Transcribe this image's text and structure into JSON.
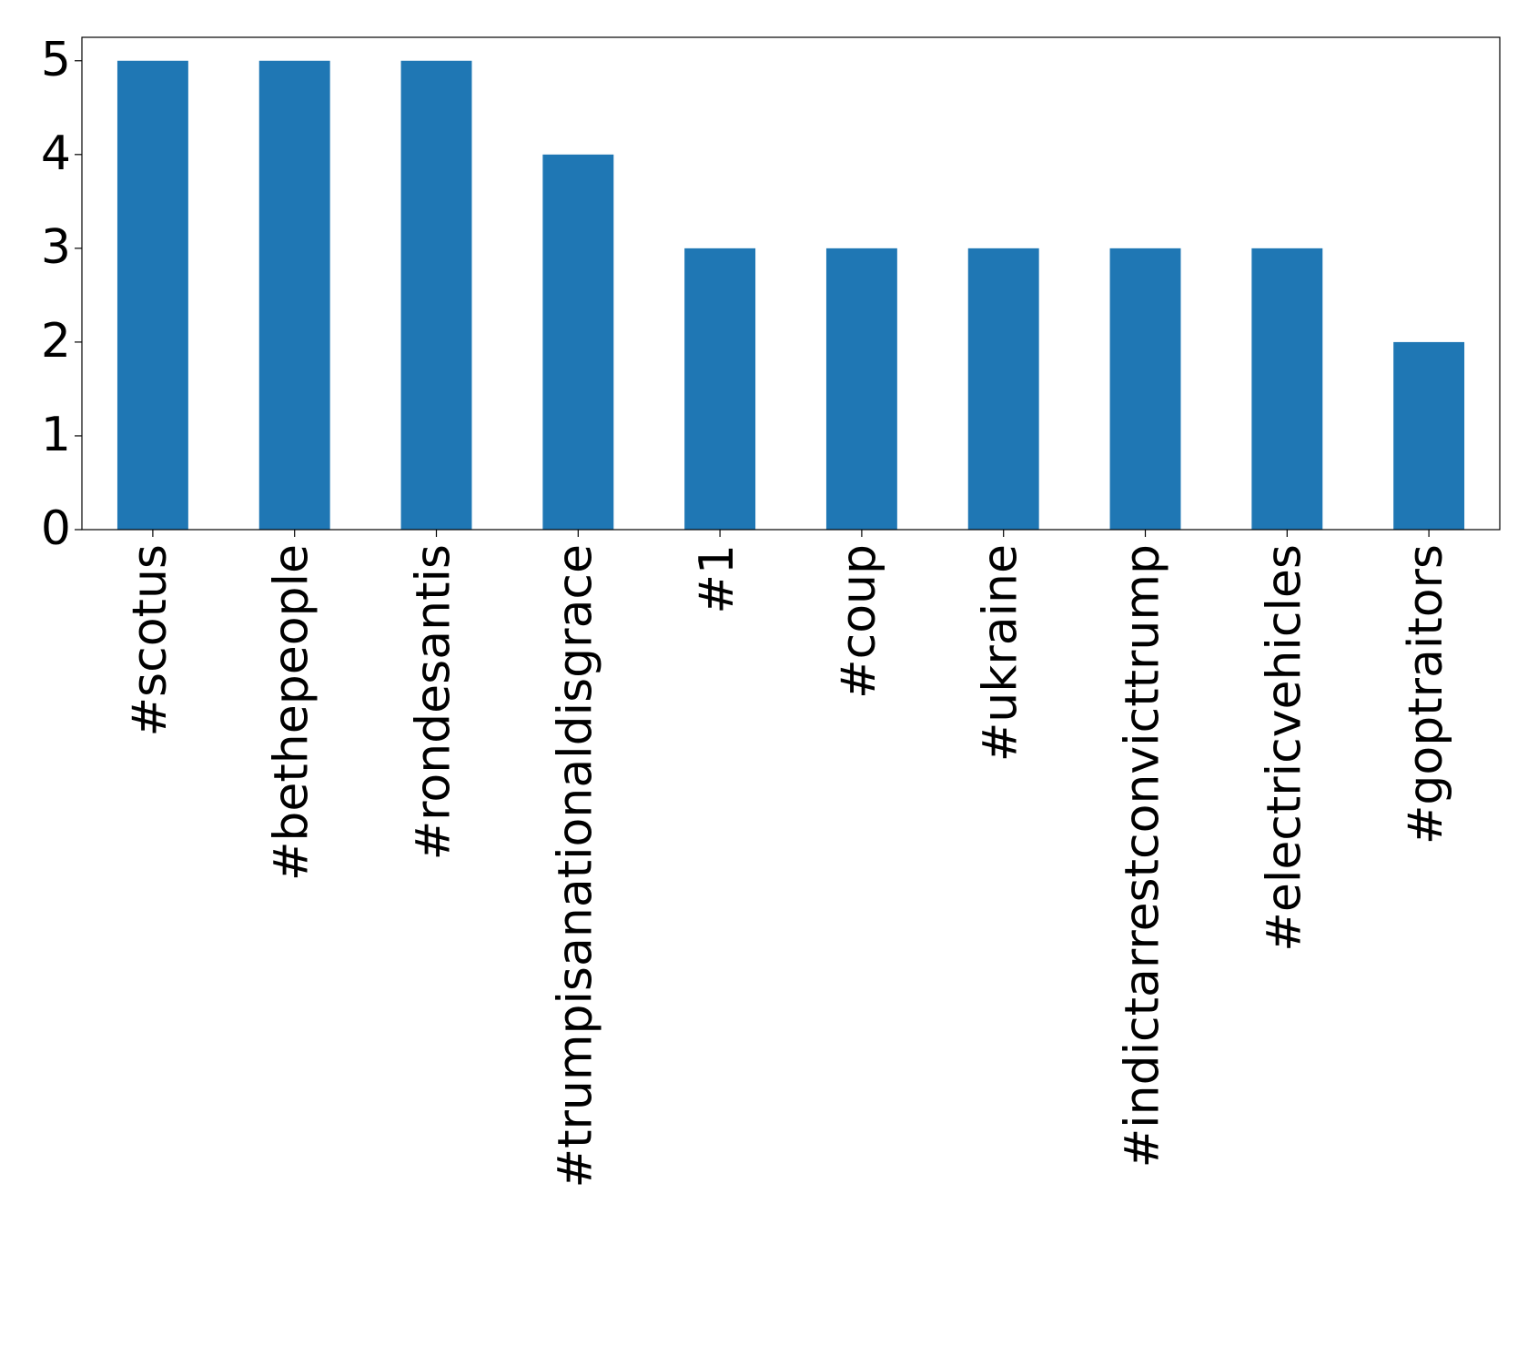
{
  "chart_data": {
    "type": "bar",
    "categories": [
      "#scotus",
      "#bethepeople",
      "#rondesantis",
      "#trumpisanationaldisgrace",
      "#1",
      "#coup",
      "#ukraine",
      "#indictarrestconvicttrump",
      "#electricvehicles",
      "#goptraitors"
    ],
    "values": [
      5,
      5,
      5,
      4,
      3,
      3,
      3,
      3,
      3,
      2
    ],
    "color": "#1f77b4",
    "ylim": [
      0,
      5.25
    ],
    "yticks": [
      0,
      1,
      2,
      3,
      4,
      5
    ],
    "grid": false
  }
}
